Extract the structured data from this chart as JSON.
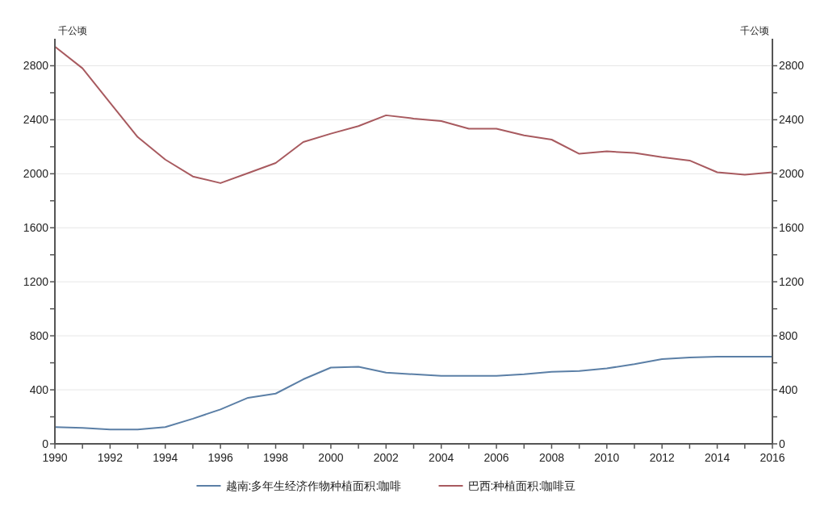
{
  "chart_data": {
    "type": "line",
    "ylabel": "千公顷",
    "y2label": "千公顷",
    "x": [
      1990,
      1991,
      1992,
      1993,
      1994,
      1995,
      1996,
      1997,
      1998,
      1999,
      2000,
      2001,
      2002,
      2003,
      2004,
      2005,
      2006,
      2007,
      2008,
      2009,
      2010,
      2011,
      2012,
      2013,
      2014,
      2015,
      2016
    ],
    "series": [
      {
        "name": "越南:多年生经济作物种植面积:咖啡",
        "color": "#5b7fa6",
        "values": [
          124,
          118,
          106,
          106,
          124,
          186,
          255,
          341,
          372,
          478,
          565,
          571,
          528,
          515,
          503,
          503,
          503,
          515,
          534,
          540,
          559,
          590,
          627,
          639,
          646,
          646,
          646
        ]
      },
      {
        "name": "巴西:种植面积:咖啡豆",
        "color": "#a85a5f",
        "values": [
          2942,
          2781,
          2526,
          2272,
          2105,
          1980,
          1931,
          2005,
          2080,
          2235,
          2297,
          2353,
          2433,
          2409,
          2390,
          2334,
          2334,
          2284,
          2253,
          2148,
          2166,
          2154,
          2123,
          2098,
          2011,
          1993,
          2011
        ]
      }
    ],
    "xlim": [
      1990,
      2016
    ],
    "xticks": [
      1990,
      {
        "value": 1991,
        "label": null
      },
      1992,
      {
        "value": 1993,
        "label": null
      },
      1994,
      {
        "value": 1995,
        "label": null
      },
      1996,
      {
        "value": 1997,
        "label": null
      },
      1998,
      {
        "value": 1999,
        "label": null
      },
      2000,
      {
        "value": 2001,
        "label": null
      },
      2002,
      {
        "value": 2003,
        "label": null
      },
      2004,
      {
        "value": 2005,
        "label": null
      },
      2006,
      {
        "value": 2007,
        "label": null
      },
      2008,
      {
        "value": 2009,
        "label": null
      },
      2010,
      {
        "value": 2011,
        "label": null
      },
      2012,
      {
        "value": 2013,
        "label": null
      },
      2014,
      {
        "value": 2015,
        "label": null
      },
      2016
    ],
    "ylim": [
      0,
      3000
    ],
    "yticks": [
      0,
      {
        "value": 200,
        "label": null
      },
      400,
      {
        "value": 600,
        "label": null
      },
      800,
      {
        "value": 1000,
        "label": null
      },
      1200,
      {
        "value": 1400,
        "label": null
      },
      1600,
      {
        "value": 1800,
        "label": null
      },
      2000,
      {
        "value": 2200,
        "label": null
      },
      2400,
      {
        "value": 2600,
        "label": null
      },
      2800
    ],
    "y2lim": [
      0,
      3000
    ],
    "y2ticks": [
      0,
      {
        "value": 200,
        "label": null
      },
      400,
      {
        "value": 600,
        "label": null
      },
      800,
      {
        "value": 1000,
        "label": null
      },
      1200,
      {
        "value": 1400,
        "label": null
      },
      1600,
      {
        "value": 1800,
        "label": null
      },
      2000,
      {
        "value": 2200,
        "label": null
      },
      2400,
      {
        "value": 2600,
        "label": null
      },
      2800
    ],
    "grid": "y",
    "legend": "bottom",
    "marker": "none",
    "line_style": "solid"
  }
}
